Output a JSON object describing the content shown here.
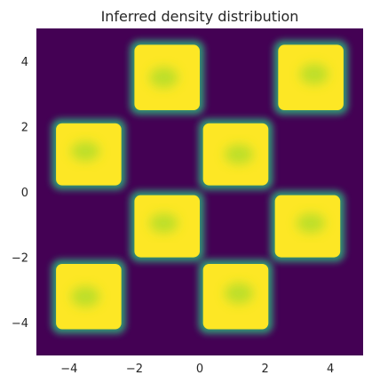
{
  "chart_data": {
    "type": "heatmap",
    "title": "Inferred density distribution",
    "xlabel": "",
    "ylabel": "",
    "xlim": [
      -5,
      5
    ],
    "ylim": [
      -5,
      5
    ],
    "grid": false,
    "colormap": "viridis",
    "background_color": "#440154",
    "high_density_color": "#fde725",
    "x_ticks": [
      -4,
      -2,
      0,
      2,
      4
    ],
    "y_ticks": [
      4,
      2,
      0,
      -2,
      -4
    ],
    "x_tick_labels": [
      "−4",
      "−2",
      "0",
      "2",
      "4"
    ],
    "y_tick_labels": [
      "4",
      "2",
      "0",
      "−2",
      "−4"
    ],
    "cells": [
      {
        "x": [
          -2,
          0
        ],
        "y": [
          2.5,
          4.5
        ],
        "density": "high"
      },
      {
        "x": [
          2.4,
          4.4
        ],
        "y": [
          2.5,
          4.5
        ],
        "density": "high"
      },
      {
        "x": [
          -4.4,
          -2.4
        ],
        "y": [
          0.2,
          2.1
        ],
        "density": "high"
      },
      {
        "x": [
          0.1,
          2.1
        ],
        "y": [
          0.2,
          2.1
        ],
        "density": "high"
      },
      {
        "x": [
          -2,
          0
        ],
        "y": [
          -2.0,
          -0.1
        ],
        "density": "high"
      },
      {
        "x": [
          2.3,
          4.3
        ],
        "y": [
          -2.0,
          -0.1
        ],
        "density": "high"
      },
      {
        "x": [
          -4.4,
          -2.4
        ],
        "y": [
          -4.2,
          -2.2
        ],
        "density": "high"
      },
      {
        "x": [
          0.1,
          2.1
        ],
        "y": [
          -4.2,
          -2.2
        ],
        "density": "high"
      }
    ]
  }
}
